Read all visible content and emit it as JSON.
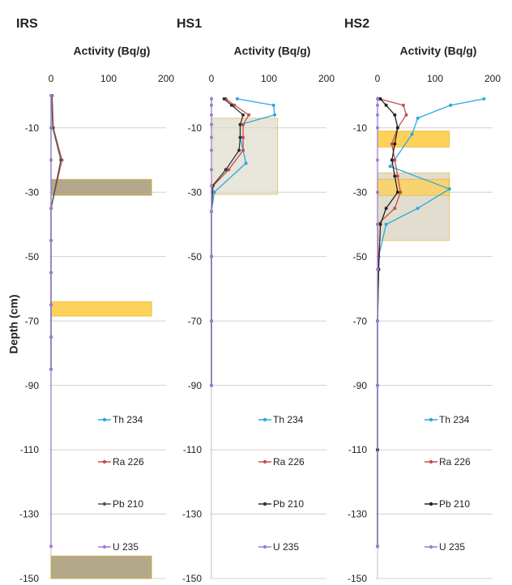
{
  "chart_data": [
    {
      "type": "line",
      "title": "IRS",
      "x_label": "Activity (Bq/g)",
      "y_label": "Depth (cm)",
      "xlim": [
        0,
        200
      ],
      "xticks": [
        0,
        100,
        200
      ],
      "ylim": [
        -150,
        0
      ],
      "yticks": [
        -10,
        -30,
        -50,
        -70,
        -90,
        -110,
        -130,
        -150
      ],
      "grid": true,
      "legend": "lower right",
      "regions": [
        {
          "xlim": [
            0,
            175
          ],
          "ylim": [
            -31,
            -26
          ],
          "color": "#b3a98a"
        },
        {
          "xlim": [
            0,
            175
          ],
          "ylim": [
            -68.5,
            -64
          ],
          "color": "#fcd25a"
        },
        {
          "xlim": [
            0,
            175
          ],
          "ylim": [
            -150,
            -143
          ],
          "color": "#b3a98a"
        }
      ],
      "series": [
        {
          "name": "Th 234",
          "color": "#2aa8e0",
          "x": [
            0,
            0,
            0,
            0,
            0,
            0,
            0,
            0,
            0
          ],
          "y": [
            0,
            -10,
            -20,
            -35,
            -45,
            -55,
            -65,
            -75,
            -85
          ]
        },
        {
          "name": "Ra 226",
          "color": "#c0504d",
          "x": [
            2,
            4,
            19,
            0,
            0,
            0,
            0,
            0,
            0
          ],
          "y": [
            0,
            -10,
            -20,
            -35,
            -45,
            -55,
            -65,
            -75,
            -85
          ]
        },
        {
          "name": "Pb 210",
          "color": "#555555",
          "x": [
            1,
            3,
            17,
            0,
            0,
            0,
            0,
            0,
            0
          ],
          "y": [
            0,
            -10,
            -20,
            -35,
            -45,
            -55,
            -65,
            -75,
            -85
          ]
        },
        {
          "name": "U 235",
          "color": "#9b7fd4",
          "x": [
            0,
            0,
            0,
            0,
            0,
            0,
            0,
            0,
            0,
            0
          ],
          "y": [
            0,
            -10,
            -20,
            -35,
            -45,
            -55,
            -65,
            -75,
            -85,
            -140
          ]
        }
      ]
    },
    {
      "type": "line",
      "title": "HS1",
      "x_label": "Activity (Bq/g)",
      "xlim": [
        0,
        200
      ],
      "xticks": [
        0,
        100,
        200
      ],
      "ylim": [
        -150,
        0
      ],
      "yticks": [
        -10,
        -30,
        -50,
        -70,
        -90,
        -110,
        -130,
        -150
      ],
      "grid": true,
      "legend": "lower right",
      "regions": [
        {
          "xlim": [
            0,
            115
          ],
          "ylim": [
            -30.7,
            -7
          ],
          "color": "#ddd8c8aa"
        }
      ],
      "series": [
        {
          "name": "Th 234",
          "color": "#2aa8e0",
          "x": [
            45,
            108,
            110,
            50,
            50,
            55,
            60,
            5,
            0,
            0,
            0,
            0
          ],
          "y": [
            -1,
            -3,
            -6,
            -9,
            -13,
            -17,
            -21,
            -30,
            -36,
            -50,
            -70,
            -90
          ]
        },
        {
          "name": "Ra 226",
          "color": "#c0504d",
          "x": [
            25,
            40,
            65,
            55,
            55,
            55,
            30,
            3,
            0,
            0,
            0,
            0
          ],
          "y": [
            -1,
            -3,
            -6,
            -9,
            -13,
            -17,
            -23,
            -28,
            -36,
            -50,
            -70,
            -90
          ]
        },
        {
          "name": "Pb 210",
          "color": "#333333",
          "x": [
            22,
            35,
            55,
            50,
            50,
            48,
            25,
            2,
            0,
            0,
            0,
            0
          ],
          "y": [
            -1,
            -3,
            -6,
            -9,
            -13,
            -17,
            -23,
            -28,
            -36,
            -50,
            -70,
            -90
          ]
        },
        {
          "name": "U 235",
          "color": "#9b7fd4",
          "x": [
            0,
            0,
            0,
            0,
            0,
            0,
            0,
            0,
            0,
            0,
            0,
            0
          ],
          "y": [
            -1,
            -3,
            -6,
            -9,
            -13,
            -17,
            -23,
            -28,
            -36,
            -50,
            -70,
            -90
          ]
        }
      ]
    },
    {
      "type": "line",
      "title": "HS2",
      "x_label": "Activity (Bq/g)",
      "xlim": [
        0,
        200
      ],
      "xticks": [
        0,
        100,
        200
      ],
      "ylim": [
        -150,
        0
      ],
      "yticks": [
        -10,
        -30,
        -50,
        -70,
        -90,
        -110,
        -130,
        -150
      ],
      "grid": true,
      "legend": "lower right",
      "regions": [
        {
          "xlim": [
            0,
            125
          ],
          "ylim": [
            -45,
            -24
          ],
          "color": "#cfc7ad99"
        },
        {
          "xlim": [
            0,
            125
          ],
          "ylim": [
            -16,
            -11
          ],
          "color": "#fcd25a"
        },
        {
          "xlim": [
            0,
            125
          ],
          "ylim": [
            -31,
            -26
          ],
          "color": "#fcd25acc"
        }
      ],
      "series": [
        {
          "name": "Th 234",
          "color": "#2aa8e0",
          "x": [
            185,
            127,
            70,
            60,
            22,
            125,
            70,
            15,
            2,
            0,
            0,
            0,
            0
          ],
          "y": [
            -1,
            -3,
            -7,
            -12,
            -22,
            -29,
            -35,
            -40,
            -50,
            -70,
            -90,
            -110,
            -140
          ]
        },
        {
          "name": "Ra 226",
          "color": "#c0504d",
          "x": [
            3,
            45,
            50,
            35,
            25,
            30,
            35,
            40,
            30,
            0,
            2,
            0,
            0,
            0,
            0
          ],
          "y": [
            -1,
            -3,
            -6,
            -10,
            -15,
            -20,
            -25,
            -30,
            -35,
            -40,
            -54,
            -70,
            -90,
            -110,
            -140
          ]
        },
        {
          "name": "Pb 210",
          "color": "#222222",
          "x": [
            5,
            15,
            30,
            35,
            30,
            25,
            30,
            35,
            15,
            5,
            2,
            0,
            0,
            0,
            0
          ],
          "y": [
            -1,
            -3,
            -6,
            -10,
            -15,
            -20,
            -25,
            -30,
            -35,
            -40,
            -54,
            -70,
            -90,
            -110,
            -140
          ]
        },
        {
          "name": "U 235",
          "color": "#9b7fd4",
          "x": [
            0,
            0,
            0,
            0,
            0,
            0,
            0,
            0,
            0,
            0,
            0
          ],
          "y": [
            -1,
            -3,
            -6,
            -10,
            -20,
            -30,
            -40,
            -54,
            -70,
            -90,
            -140
          ]
        }
      ]
    }
  ]
}
